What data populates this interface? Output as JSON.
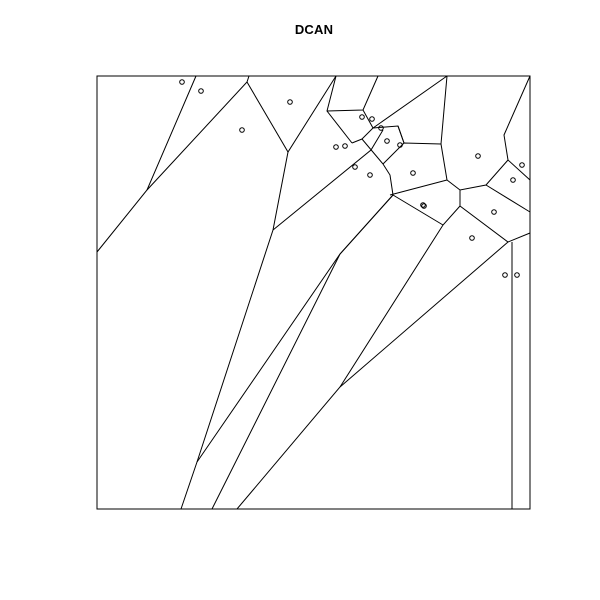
{
  "title": "DCAN",
  "colors": {
    "background": "#ffffff",
    "stroke": "#000000"
  },
  "diagram": {
    "type": "voronoi-tessellation",
    "point_marker": "open-circle",
    "site_count": 26
  }
}
